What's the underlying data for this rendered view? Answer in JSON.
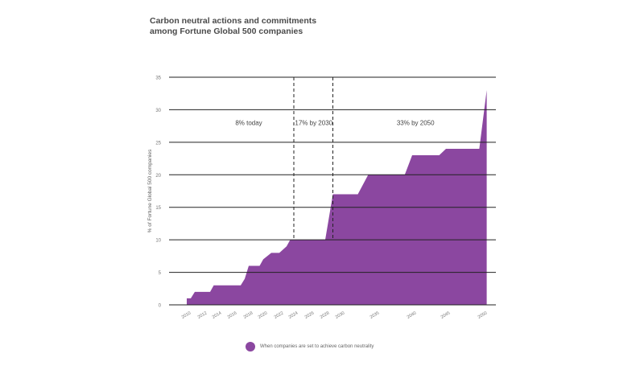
{
  "chart_data": {
    "type": "area",
    "title_lines": [
      "Carbon neutral actions and commitments",
      "among Fortune Global 500 companies"
    ],
    "xlabel": "",
    "ylabel": "% of Fortune Global 500 companies",
    "ylim": [
      0,
      35
    ],
    "yticks": [
      0,
      5,
      10,
      15,
      20,
      25,
      30,
      35
    ],
    "xlim": [
      2009,
      2051
    ],
    "xticks": [
      "2010",
      "2012",
      "2014",
      "2016",
      "2018",
      "2020",
      "2022",
      "2024",
      "2026",
      "2028",
      "2030",
      "2035",
      "2040",
      "2045",
      "2050"
    ],
    "grid": true,
    "color": "#8b47a0",
    "series": [
      {
        "name": "When companies are set to achieve carbon neutrality",
        "x": [
          2010,
          2010.5,
          2011,
          2013,
          2013.5,
          2016,
          2017,
          2017.5,
          2018,
          2019.5,
          2020,
          2021,
          2022,
          2023,
          2023.5,
          2024,
          2025,
          2028,
          2029,
          2032.5,
          2034,
          2039,
          2040,
          2044,
          2045,
          2049.5,
          2050.5
        ],
        "values": [
          1,
          1,
          2,
          2,
          3,
          3,
          3,
          4,
          6,
          6,
          7,
          8,
          8,
          9,
          10,
          10,
          10,
          10,
          17,
          17,
          20,
          20,
          23,
          23,
          24,
          24,
          33
        ]
      }
    ],
    "annotations": [
      {
        "text": "8% today",
        "x_center": 2018,
        "y": 28
      },
      {
        "text": "17% by 2030",
        "x_center": 2026.5,
        "y": 28
      },
      {
        "text": "33% by 2050",
        "x_center": 2040.5,
        "y": 28
      }
    ],
    "dashed_lines_x": [
      2024,
      2029
    ],
    "legend": {
      "position": "bottom-center"
    }
  }
}
